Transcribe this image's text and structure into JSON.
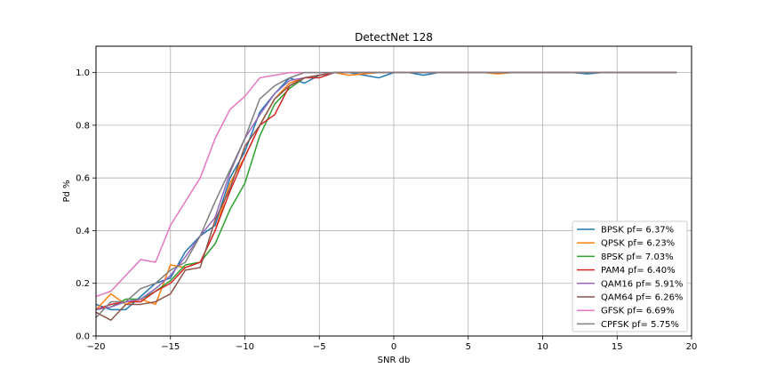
{
  "chart_data": {
    "type": "line",
    "title": "DetectNet 128",
    "xlabel": "SNR db",
    "ylabel": "Pd %",
    "xlim": [
      -20,
      20
    ],
    "ylim": [
      0,
      1.1
    ],
    "xticks": [
      -20,
      -15,
      -10,
      -5,
      0,
      5,
      10,
      15,
      20
    ],
    "xtick_labels": [
      "−20",
      "−15",
      "−10",
      "−5",
      "0",
      "5",
      "10",
      "15",
      "20"
    ],
    "yticks": [
      0,
      0.2,
      0.4,
      0.6,
      0.8,
      1.0
    ],
    "ytick_labels": [
      "0.0",
      "0.2",
      "0.4",
      "0.6",
      "0.8",
      "1.0"
    ],
    "grid": true,
    "legend_position": "lower-right",
    "x": [
      -20,
      -19,
      -18,
      -17,
      -16,
      -15,
      -14,
      -13,
      -12,
      -11,
      -10,
      -9,
      -8,
      -7,
      -6,
      -5,
      -4,
      -3,
      -2,
      -1,
      0,
      1,
      2,
      3,
      4,
      5,
      6,
      7,
      8,
      9,
      10,
      11,
      12,
      13,
      14,
      15,
      16,
      17,
      18,
      19
    ],
    "series": [
      {
        "name": "BPSK pf= 6.37%",
        "color": "#1f77b4",
        "values": [
          0.12,
          0.1,
          0.1,
          0.15,
          0.2,
          0.22,
          0.32,
          0.38,
          0.42,
          0.6,
          0.7,
          0.85,
          0.92,
          0.98,
          0.96,
          0.99,
          1.0,
          1.0,
          0.99,
          0.98,
          1.0,
          1.0,
          0.99,
          1.0,
          1.0,
          1.0,
          1.0,
          1.0,
          1.0,
          1.0,
          1.0,
          1.0,
          1.0,
          0.995,
          1.0,
          1.0,
          1.0,
          1.0,
          1.0,
          1.0
        ]
      },
      {
        "name": "QPSK pf= 6.23%",
        "color": "#ff7f0e",
        "values": [
          0.1,
          0.16,
          0.12,
          0.14,
          0.12,
          0.27,
          0.26,
          0.28,
          0.4,
          0.58,
          0.68,
          0.8,
          0.9,
          0.96,
          0.98,
          0.99,
          1.0,
          0.99,
          0.995,
          1.0,
          1.0,
          1.0,
          1.0,
          1.0,
          1.0,
          1.0,
          1.0,
          0.995,
          1.0,
          1.0,
          1.0,
          1.0,
          1.0,
          1.0,
          1.0,
          1.0,
          1.0,
          1.0,
          1.0,
          1.0
        ]
      },
      {
        "name": "8PSK pf= 7.03%",
        "color": "#2ca02c",
        "values": [
          0.1,
          0.11,
          0.14,
          0.14,
          0.17,
          0.21,
          0.27,
          0.28,
          0.35,
          0.48,
          0.58,
          0.76,
          0.88,
          0.94,
          0.98,
          0.99,
          1.0,
          1.0,
          1.0,
          1.0,
          1.0,
          1.0,
          1.0,
          1.0,
          1.0,
          1.0,
          1.0,
          1.0,
          1.0,
          1.0,
          1.0,
          1.0,
          1.0,
          1.0,
          1.0,
          1.0,
          1.0,
          1.0,
          1.0,
          1.0
        ]
      },
      {
        "name": "PAM4 pf= 6.40%",
        "color": "#d62728",
        "values": [
          0.1,
          0.12,
          0.13,
          0.13,
          0.17,
          0.2,
          0.26,
          0.28,
          0.4,
          0.55,
          0.68,
          0.8,
          0.84,
          0.95,
          0.98,
          0.98,
          1.0,
          1.0,
          1.0,
          1.0,
          1.0,
          1.0,
          1.0,
          1.0,
          1.0,
          1.0,
          1.0,
          1.0,
          1.0,
          1.0,
          1.0,
          1.0,
          1.0,
          1.0,
          1.0,
          1.0,
          1.0,
          1.0,
          1.0,
          1.0
        ]
      },
      {
        "name": "QAM16 pf= 5.91%",
        "color": "#9467bd",
        "values": [
          0.1,
          0.11,
          0.13,
          0.14,
          0.18,
          0.23,
          0.3,
          0.38,
          0.45,
          0.62,
          0.75,
          0.84,
          0.92,
          0.97,
          0.98,
          0.99,
          1.0,
          1.0,
          1.0,
          1.0,
          1.0,
          1.0,
          1.0,
          1.0,
          1.0,
          1.0,
          1.0,
          1.0,
          1.0,
          1.0,
          1.0,
          1.0,
          1.0,
          1.0,
          1.0,
          1.0,
          1.0,
          1.0,
          1.0,
          1.0
        ]
      },
      {
        "name": "QAM64 pf= 6.26%",
        "color": "#8c564b",
        "values": [
          0.09,
          0.06,
          0.12,
          0.12,
          0.13,
          0.16,
          0.25,
          0.26,
          0.44,
          0.56,
          0.72,
          0.8,
          0.9,
          0.95,
          0.98,
          0.99,
          1.0,
          1.0,
          1.0,
          1.0,
          1.0,
          1.0,
          1.0,
          1.0,
          1.0,
          1.0,
          1.0,
          1.0,
          1.0,
          1.0,
          1.0,
          1.0,
          1.0,
          1.0,
          1.0,
          1.0,
          1.0,
          1.0,
          1.0,
          1.0
        ]
      },
      {
        "name": "GFSK pf= 6.69%",
        "color": "#e377c2",
        "values": [
          0.15,
          0.17,
          0.23,
          0.29,
          0.28,
          0.42,
          0.51,
          0.6,
          0.75,
          0.86,
          0.91,
          0.98,
          0.99,
          1.0,
          1.0,
          1.0,
          1.0,
          1.0,
          1.0,
          1.0,
          1.0,
          1.0,
          1.0,
          1.0,
          1.0,
          1.0,
          1.0,
          1.0,
          1.0,
          1.0,
          1.0,
          1.0,
          1.0,
          1.0,
          1.0,
          1.0,
          1.0,
          1.0,
          1.0,
          1.0
        ]
      },
      {
        "name": "CPFSK pf= 5.75%",
        "color": "#7f7f7f",
        "values": [
          0.07,
          0.13,
          0.13,
          0.18,
          0.2,
          0.25,
          0.28,
          0.38,
          0.51,
          0.63,
          0.75,
          0.9,
          0.95,
          0.98,
          1.0,
          1.0,
          1.0,
          1.0,
          1.0,
          1.0,
          1.0,
          1.0,
          1.0,
          1.0,
          1.0,
          1.0,
          1.0,
          1.0,
          1.0,
          1.0,
          1.0,
          1.0,
          1.0,
          1.0,
          1.0,
          1.0,
          1.0,
          1.0,
          1.0,
          1.0
        ]
      }
    ]
  }
}
